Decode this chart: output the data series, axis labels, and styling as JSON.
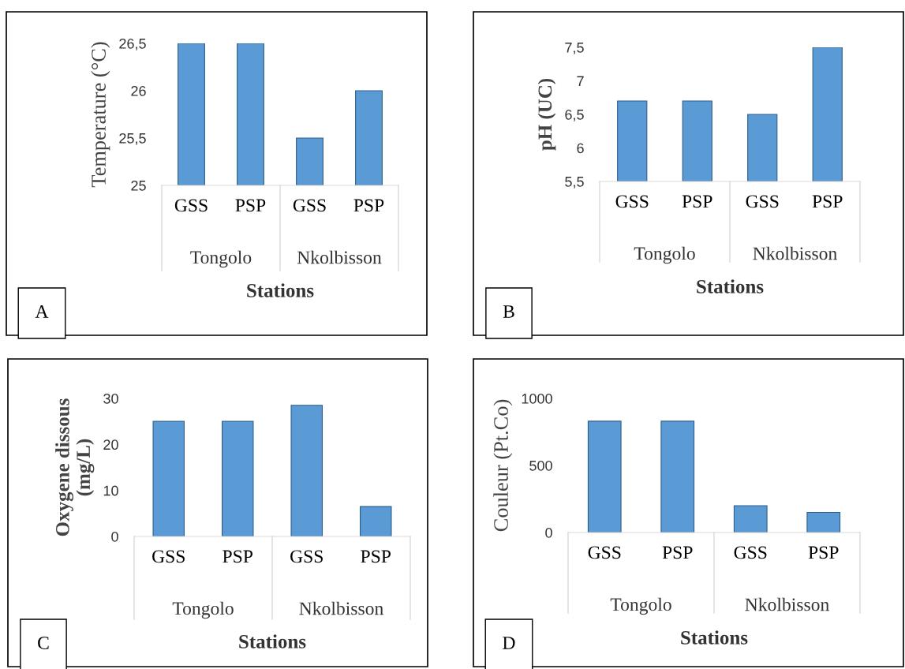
{
  "chart_data": [
    {
      "type": "bar",
      "ylabel": "Temperature (°C)",
      "xlabel": "Stations",
      "categories": [
        "GSS",
        "PSP",
        "GSS",
        "PSP"
      ],
      "values": [
        26.5,
        26.5,
        25.5,
        26.0
      ],
      "color": "#5b9bd5",
      "ylim": [
        25,
        26.5
      ],
      "yticks": [
        25,
        {
          "value": 25.5,
          "label": "25,5"
        },
        26,
        {
          "value": 26.5,
          "label": "26,5"
        }
      ],
      "annotations": [
        "Tongolo",
        "Nkolbisson",
        "A"
      ]
    },
    {
      "type": "bar",
      "ylabel": "pH (UC)",
      "xlabel": "Stations",
      "categories": [
        "GSS",
        "PSP",
        "GSS",
        "PSP"
      ],
      "values": [
        6.7,
        6.7,
        6.5,
        7.5
      ],
      "color": "#5b9bd5",
      "ylim": [
        5.5,
        7.5
      ],
      "yticks": [
        {
          "value": 5.5,
          "label": "5,5"
        },
        6,
        {
          "value": 6.5,
          "label": "6,5"
        },
        7,
        {
          "value": 7.5,
          "label": "7,5"
        }
      ],
      "annotations": [
        "Tongolo",
        "Nkolbisson",
        "B"
      ]
    },
    {
      "type": "bar",
      "ylabel": "Oxygene dissous\n(mg/L)",
      "xlabel": "Stations",
      "categories": [
        "GSS",
        "PSP",
        "GSS",
        "PSP"
      ],
      "values": [
        25,
        25,
        28.5,
        6.5
      ],
      "color": "#5b9bd5",
      "ylim": [
        0,
        30
      ],
      "yticks": [
        0,
        10,
        20,
        30
      ],
      "annotations": [
        "Tongolo",
        "Nkolbisson",
        "C"
      ]
    },
    {
      "type": "bar",
      "ylabel": "Couleur (Pt.Co)",
      "xlabel": "Stations",
      "categories": [
        "GSS",
        "PSP",
        "GSS",
        "PSP"
      ],
      "values": [
        830,
        830,
        200,
        150
      ],
      "color": "#5b9bd5",
      "ylim": [
        0,
        1000
      ],
      "yticks": [
        0,
        500,
        1000
      ],
      "annotations": [
        "Tongolo",
        "Nkolbisson",
        "D"
      ]
    }
  ]
}
